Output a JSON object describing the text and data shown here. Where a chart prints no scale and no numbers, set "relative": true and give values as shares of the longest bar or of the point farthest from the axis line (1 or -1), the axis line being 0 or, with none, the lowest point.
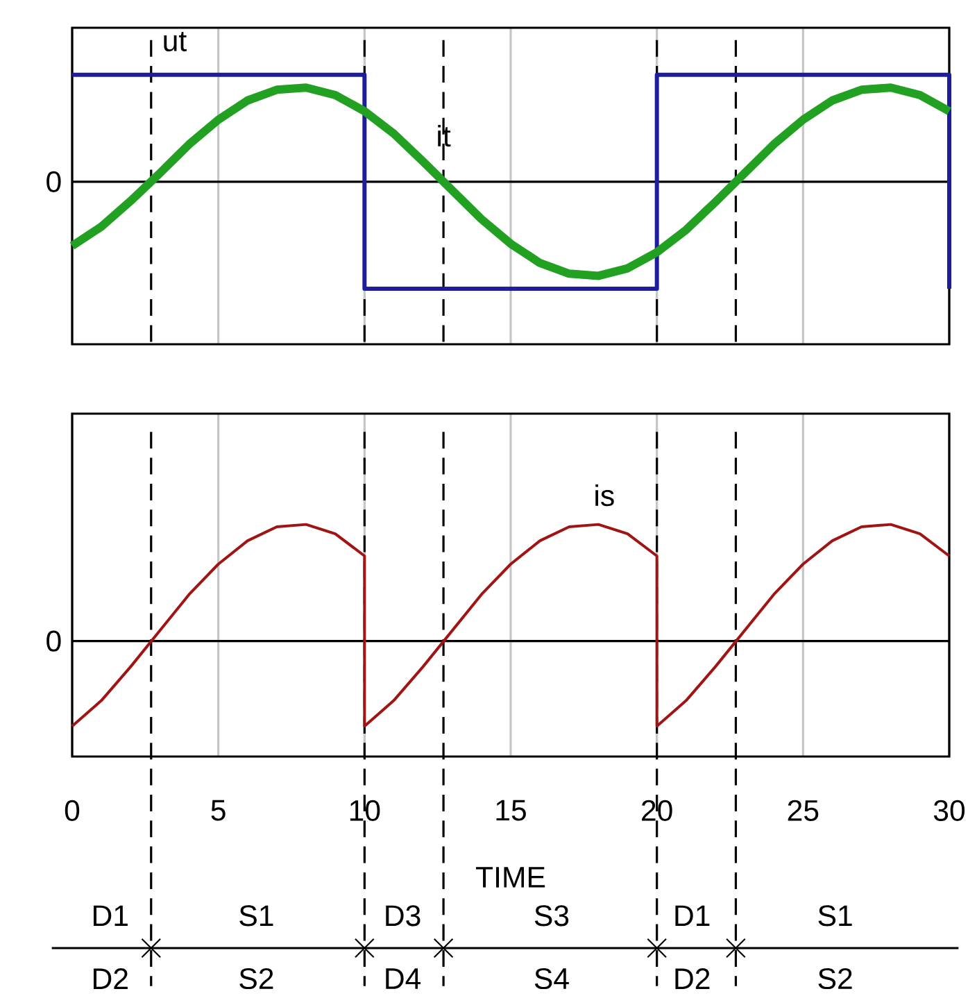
{
  "chart_data": [
    {
      "type": "line",
      "relative": true,
      "xlim": [
        0,
        30
      ],
      "xticks": [
        0,
        5,
        10,
        15,
        20,
        25,
        30
      ],
      "tick_labels": false,
      "grid": "x",
      "marker": "none",
      "line_style": "solid",
      "series": [
        {
          "color": "#1e1e9c",
          "x": [
            0,
            10,
            10,
            20,
            20,
            30,
            30
          ],
          "values": [
            1,
            1,
            -1,
            -1,
            1,
            1,
            -1
          ]
        },
        {
          "color": "#22a022",
          "x": [
            0,
            1,
            2,
            3,
            4,
            5,
            6,
            7,
            8,
            9,
            10,
            11,
            12,
            13,
            14,
            15,
            16,
            17,
            18,
            19,
            20,
            21,
            22,
            23,
            24,
            25,
            26,
            27,
            28,
            29,
            30
          ],
          "values": [
            -0.6,
            -0.42,
            -0.18,
            0.08,
            0.35,
            0.58,
            0.76,
            0.86,
            0.88,
            0.81,
            0.66,
            0.45,
            0.19,
            -0.08,
            -0.35,
            -0.58,
            -0.76,
            -0.86,
            -0.88,
            -0.81,
            -0.66,
            -0.45,
            -0.19,
            0.08,
            0.35,
            0.58,
            0.76,
            0.86,
            0.88,
            0.81,
            0.66
          ]
        }
      ],
      "ref_lines": [
        {
          "axis": "y",
          "value": 0,
          "label": "0",
          "color": "#000000",
          "line_style": "solid"
        },
        {
          "axis": "x",
          "value": 2.7,
          "color": "#000000",
          "line_style": "dashed"
        },
        {
          "axis": "x",
          "value": 10,
          "color": "#000000",
          "line_style": "dashed"
        },
        {
          "axis": "x",
          "value": 12.7,
          "color": "#000000",
          "line_style": "dashed"
        },
        {
          "axis": "x",
          "value": 20,
          "color": "#000000",
          "line_style": "dashed"
        },
        {
          "axis": "x",
          "value": 22.7,
          "color": "#000000",
          "line_style": "dashed"
        }
      ],
      "annotations": [
        "ut",
        "it"
      ]
    },
    {
      "type": "line",
      "relative": true,
      "xlim": [
        0,
        30
      ],
      "xticks": [
        0,
        5,
        10,
        15,
        20,
        25,
        30
      ],
      "xlabel": "TIME",
      "grid": "x",
      "marker": "none",
      "line_style": "solid",
      "series": [
        {
          "color": "#a01414",
          "x": [
            0,
            1,
            2,
            3,
            4,
            5,
            6,
            7,
            8,
            9,
            10,
            10,
            11,
            12,
            13,
            14,
            15,
            16,
            17,
            18,
            19,
            20,
            20,
            21,
            22,
            23,
            24,
            25,
            26,
            27,
            28,
            29,
            30
          ],
          "values": [
            -0.73,
            -0.51,
            -0.22,
            0.09,
            0.4,
            0.66,
            0.86,
            0.98,
            1,
            0.92,
            0.73,
            -0.73,
            -0.51,
            -0.22,
            0.09,
            0.4,
            0.66,
            0.86,
            0.98,
            1,
            0.92,
            0.73,
            -0.73,
            -0.51,
            -0.22,
            0.09,
            0.4,
            0.66,
            0.86,
            0.98,
            1,
            0.92,
            0.73
          ]
        }
      ],
      "ref_lines": [
        {
          "axis": "y",
          "value": 0,
          "label": "0",
          "color": "#000000",
          "line_style": "solid"
        },
        {
          "axis": "x",
          "value": 2.7,
          "color": "#000000",
          "line_style": "dashed"
        },
        {
          "axis": "x",
          "value": 10,
          "color": "#000000",
          "line_style": "dashed"
        },
        {
          "axis": "x",
          "value": 12.7,
          "color": "#000000",
          "line_style": "dashed"
        },
        {
          "axis": "x",
          "value": 20,
          "color": "#000000",
          "line_style": "dashed"
        },
        {
          "axis": "x",
          "value": 22.7,
          "color": "#000000",
          "line_style": "dashed"
        }
      ],
      "annotations": [
        "is",
        "D1",
        "S1",
        "D3",
        "S3",
        "D1",
        "S1",
        "D2",
        "S2",
        "D4",
        "S4",
        "D2",
        "S2"
      ]
    }
  ]
}
